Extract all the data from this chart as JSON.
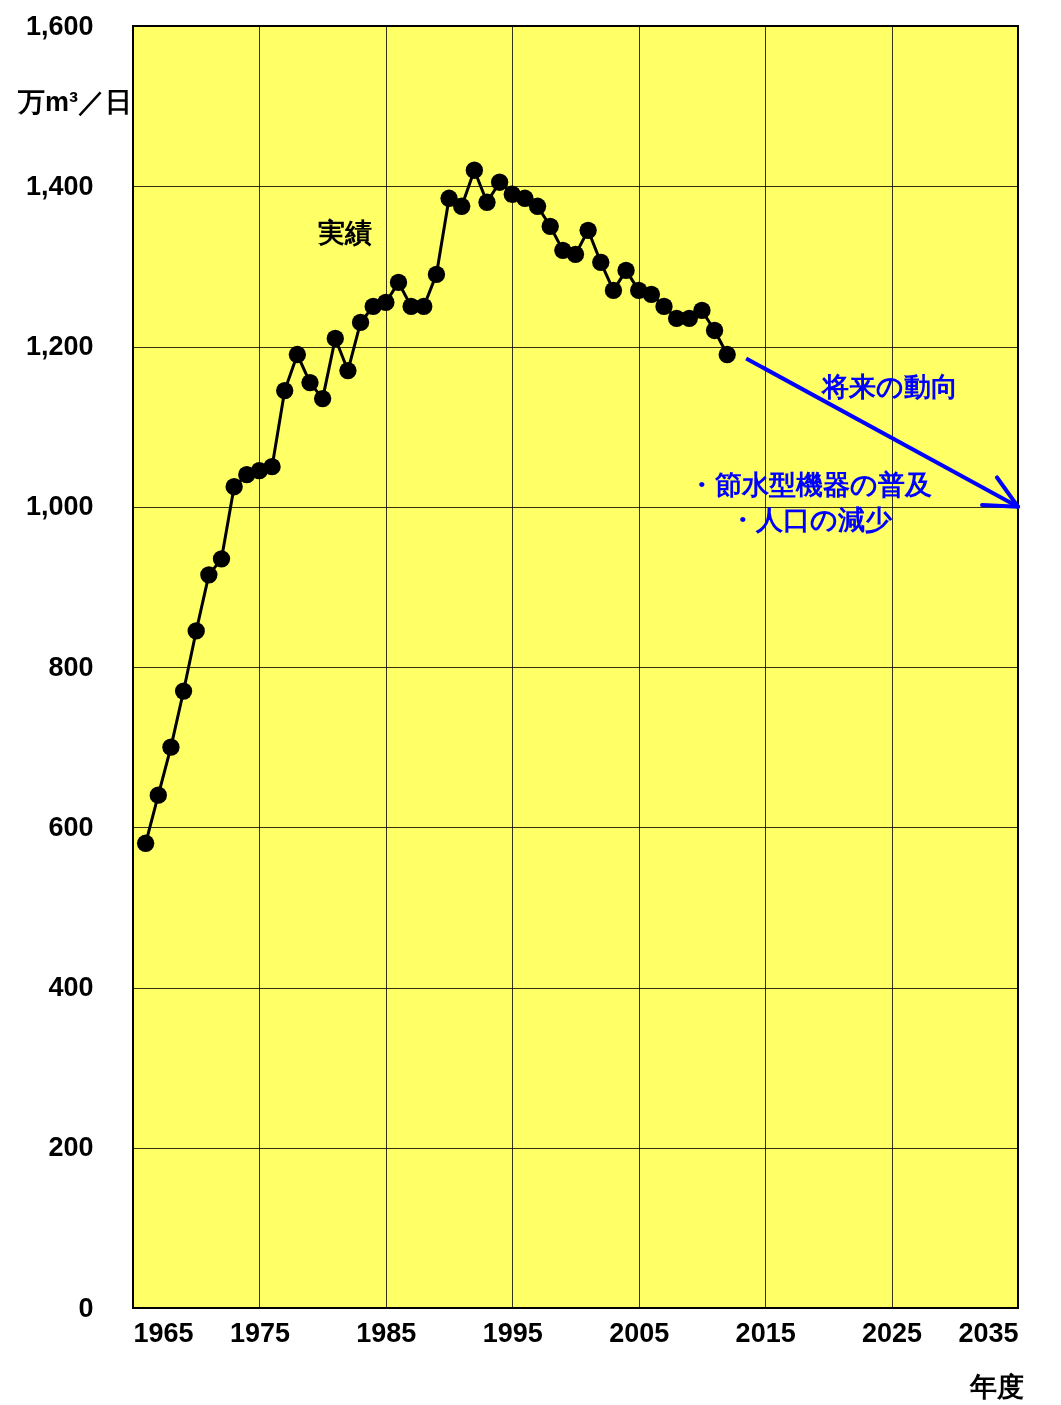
{
  "chart_data": {
    "type": "line",
    "ylabel": "万m³／日",
    "xlabel": "年度",
    "x": [
      1966,
      1967,
      1968,
      1969,
      1970,
      1971,
      1972,
      1973,
      1974,
      1975,
      1976,
      1977,
      1978,
      1979,
      1980,
      1981,
      1982,
      1983,
      1984,
      1985,
      1986,
      1987,
      1988,
      1989,
      1990,
      1991,
      1992,
      1993,
      1994,
      1995,
      1996,
      1997,
      1998,
      1999,
      2000,
      2001,
      2002,
      2003,
      2004,
      2005,
      2006,
      2007,
      2008,
      2009,
      2010,
      2011,
      2012
    ],
    "series": [
      {
        "name": "実績",
        "color": "#000000",
        "marker": "circle",
        "values": [
          580,
          640,
          700,
          770,
          845,
          915,
          935,
          1025,
          1040,
          1045,
          1050,
          1145,
          1190,
          1155,
          1135,
          1210,
          1170,
          1230,
          1250,
          1255,
          1280,
          1250,
          1250,
          1290,
          1385,
          1375,
          1420,
          1380,
          1405,
          1390,
          1385,
          1375,
          1350,
          1320,
          1315,
          1345,
          1305,
          1270,
          1295,
          1270,
          1265,
          1250,
          1235,
          1235,
          1245,
          1220,
          1190
        ]
      },
      {
        "name": "将来の動向",
        "color": "#0000ff",
        "type": "line",
        "marker": "none",
        "line_style": "solid",
        "x": [
          2013.5,
          2035
        ],
        "values": [
          1185,
          1000
        ]
      }
    ],
    "annotations": [
      "・節水型機器の普及",
      "・人口の減少"
    ],
    "xlim": [
      1965,
      2035
    ],
    "xticks": [
      1965,
      1975,
      1985,
      1995,
      2005,
      2015,
      2025,
      2035
    ],
    "ylim": [
      0,
      1600
    ],
    "yticks": [
      0,
      200,
      400,
      600,
      800,
      {
        "value": 1000,
        "label": "1,000"
      },
      {
        "value": 1200,
        "label": "1,200"
      },
      {
        "value": 1400,
        "label": "1,400"
      },
      {
        "value": 1600,
        "label": "1,600"
      }
    ],
    "grid": true
  }
}
